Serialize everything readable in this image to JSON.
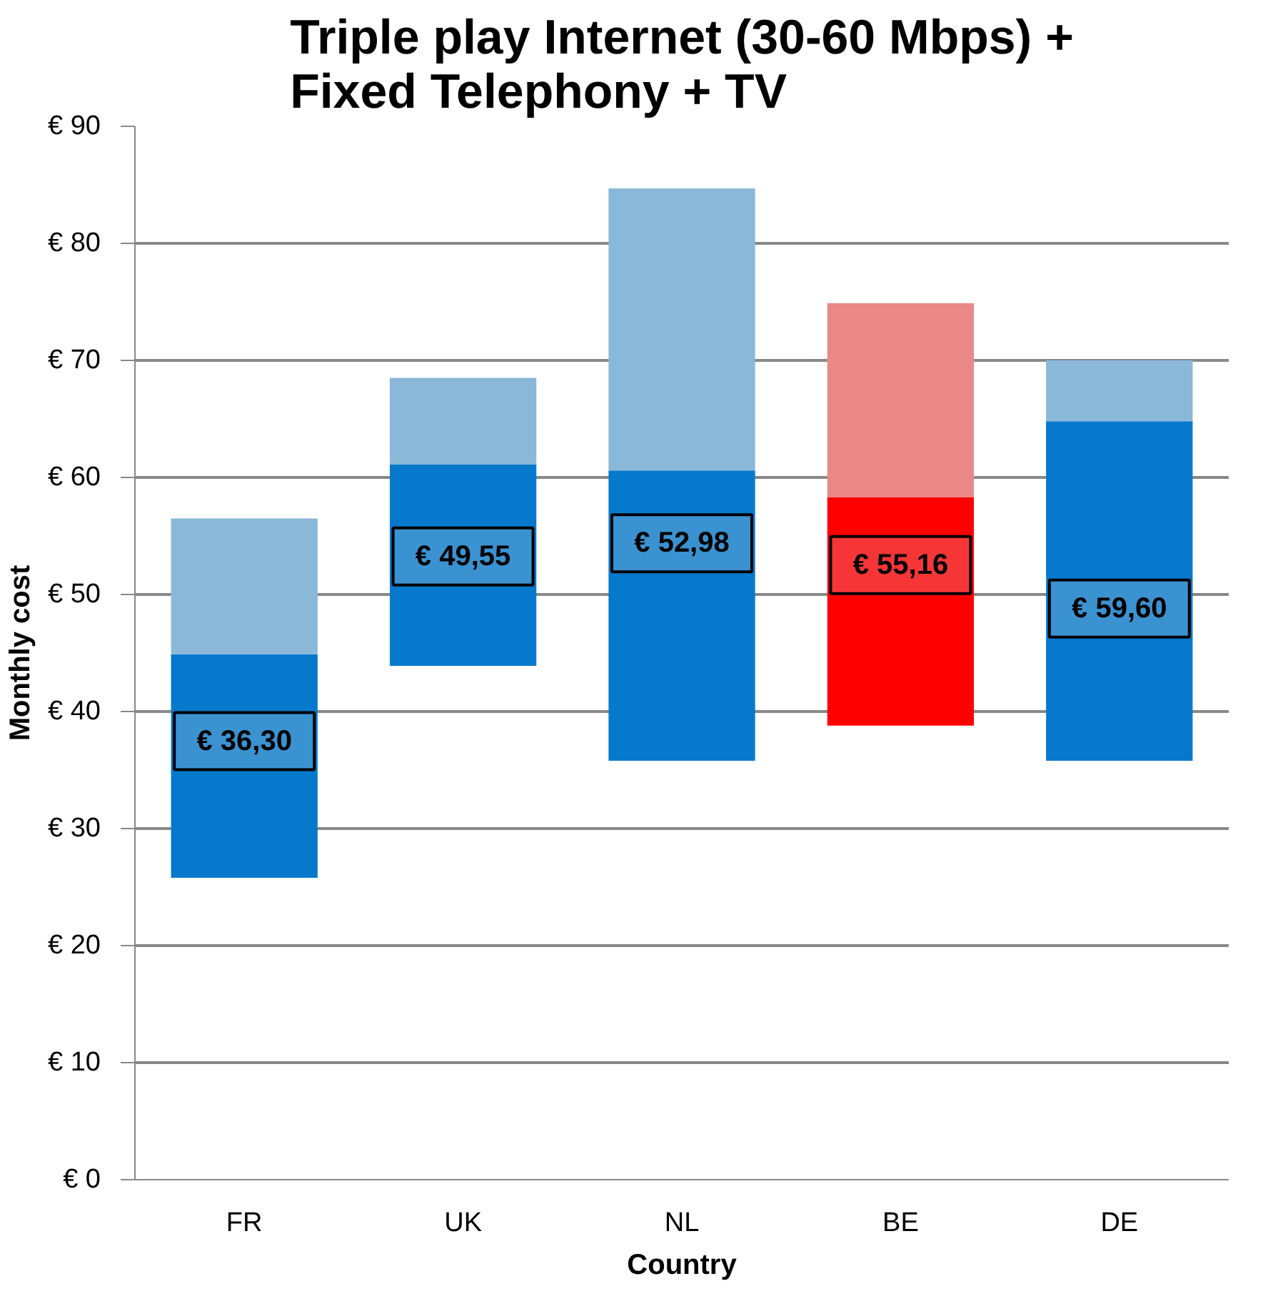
{
  "chart_data": {
    "type": "bar",
    "title": "Triple play Internet (30-60 Mbps) + Fixed Telephony + TV",
    "xlabel": "Country",
    "ylabel": "Monthly cost",
    "categories": [
      "FR",
      "UK",
      "NL",
      "BE",
      "DE"
    ],
    "series": [
      {
        "colors": [
          "#0779cc",
          "#0779cc",
          "#0779cc",
          "#ff0000",
          "#0779cc"
        ],
        "base": [
          25.8,
          43.9,
          35.8,
          38.8,
          35.8
        ],
        "values": [
          19.1,
          17.2,
          24.8,
          19.5,
          29.0
        ]
      },
      {
        "colors": [
          "#8ab8d9",
          "#8ab8d9",
          "#8ab8d9",
          "#ea8888",
          "#8ab8d9"
        ],
        "base": [
          44.9,
          61.1,
          60.6,
          58.3,
          64.8
        ],
        "values": [
          11.6,
          7.4,
          24.1,
          16.6,
          5.2
        ]
      }
    ],
    "annotations": [
      "€ 36,30",
      "€ 49,55",
      "€ 52,98",
      "€ 55,16",
      "€ 59,60"
    ],
    "ylim": [
      0,
      90
    ],
    "yticks": [
      {
        "value": 0,
        "label": "€ 0"
      },
      {
        "value": 10,
        "label": "€ 10"
      },
      {
        "value": 20,
        "label": "€ 20"
      },
      {
        "value": 30,
        "label": "€ 30"
      },
      {
        "value": 40,
        "label": "€ 40"
      },
      {
        "value": 50,
        "label": "€ 50"
      },
      {
        "value": 60,
        "label": "€ 60"
      },
      {
        "value": 70,
        "label": "€ 70"
      },
      {
        "value": 80,
        "label": "€ 80"
      },
      {
        "value": 90,
        "label": "€ 90"
      }
    ],
    "grid": "y"
  }
}
